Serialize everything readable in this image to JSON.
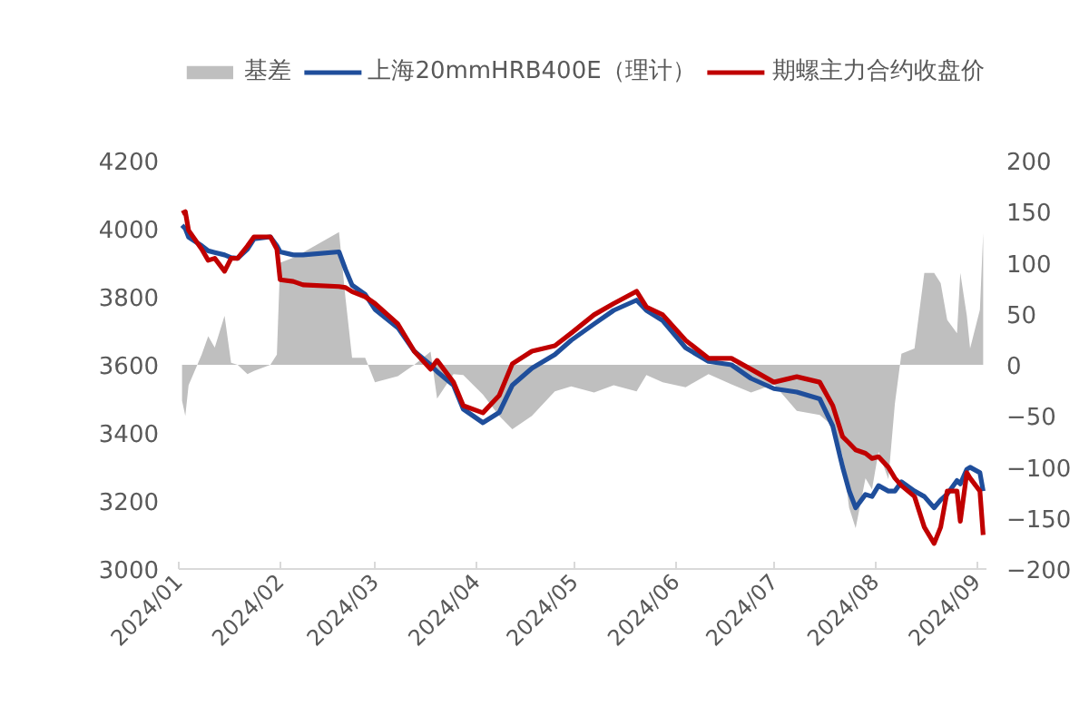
{
  "chart_data": {
    "type": "line",
    "x": [
      "2024-01-02",
      "2024-01-03",
      "2024-01-04",
      "2024-01-08",
      "2024-01-10",
      "2024-01-12",
      "2024-01-15",
      "2024-01-17",
      "2024-01-19",
      "2024-01-22",
      "2024-01-24",
      "2024-01-29",
      "2024-01-31",
      "2024-02-01",
      "2024-02-05",
      "2024-02-08",
      "2024-02-19",
      "2024-02-21",
      "2024-02-23",
      "2024-02-27",
      "2024-03-01",
      "2024-03-08",
      "2024-03-13",
      "2024-03-18",
      "2024-03-20",
      "2024-03-25",
      "2024-03-28",
      "2024-04-03",
      "2024-04-08",
      "2024-04-12",
      "2024-04-18",
      "2024-04-25",
      "2024-04-30",
      "2024-05-07",
      "2024-05-13",
      "2024-05-20",
      "2024-05-23",
      "2024-05-28",
      "2024-06-04",
      "2024-06-11",
      "2024-06-18",
      "2024-06-24",
      "2024-07-01",
      "2024-07-08",
      "2024-07-15",
      "2024-07-19",
      "2024-07-22",
      "2024-07-24",
      "2024-07-26",
      "2024-07-29",
      "2024-07-31",
      "2024-08-02",
      "2024-08-05",
      "2024-08-07",
      "2024-08-09",
      "2024-08-13",
      "2024-08-16",
      "2024-08-19",
      "2024-08-21",
      "2024-08-23",
      "2024-08-26",
      "2024-08-27",
      "2024-08-29",
      "2024-08-30",
      "2024-09-02",
      "2024-09-03"
    ],
    "series": [
      {
        "name": "基差",
        "type": "area",
        "axis": "y2",
        "color": "#bfbfbf",
        "values": [
          -35,
          -50,
          -20,
          10,
          28,
          17,
          48,
          2,
          0,
          -9,
          -6,
          0,
          10,
          100,
          105,
          110,
          130,
          65,
          7,
          7,
          -17,
          -11,
          0,
          13,
          -33,
          -9,
          -10,
          -29,
          -50,
          -63,
          -50,
          -26,
          -21,
          -27,
          -20,
          -26,
          -10,
          -17,
          -22,
          -9,
          -19,
          -27,
          -19,
          -45,
          -49,
          -60,
          -89,
          -140,
          -160,
          -111,
          -122,
          -85,
          -112,
          -38,
          11,
          16,
          90,
          90,
          80,
          44,
          31,
          90,
          48,
          16,
          54,
          129
        ]
      },
      {
        "name": "上海20mmHRB400E（理计）",
        "type": "line",
        "color": "#1f4e9b",
        "values": [
          4010,
          4000,
          3975,
          3950,
          3935,
          3930,
          3923,
          3915,
          3913,
          3940,
          3970,
          3976,
          3950,
          3932,
          3923,
          3923,
          3932,
          3880,
          3834,
          3807,
          3763,
          3709,
          3640,
          3600,
          3580,
          3540,
          3470,
          3430,
          3460,
          3540,
          3590,
          3630,
          3672,
          3720,
          3760,
          3790,
          3760,
          3730,
          3650,
          3610,
          3600,
          3560,
          3530,
          3520,
          3500,
          3420,
          3300,
          3230,
          3180,
          3219,
          3213,
          3245,
          3229,
          3229,
          3256,
          3229,
          3213,
          3180,
          3203,
          3220,
          3260,
          3250,
          3293,
          3299,
          3283,
          3229
        ]
      },
      {
        "name": "期螺主力合约收盘价",
        "type": "line",
        "color": "#c00000",
        "values": [
          4045,
          4050,
          3995,
          3940,
          3907,
          3913,
          3875,
          3913,
          3913,
          3949,
          3976,
          3976,
          3940,
          3850,
          3845,
          3835,
          3830,
          3827,
          3815,
          3800,
          3780,
          3720,
          3640,
          3587,
          3613,
          3549,
          3480,
          3459,
          3510,
          3603,
          3640,
          3656,
          3693,
          3747,
          3780,
          3816,
          3770,
          3747,
          3672,
          3619,
          3619,
          3587,
          3549,
          3565,
          3549,
          3480,
          3389,
          3370,
          3350,
          3340,
          3325,
          3330,
          3299,
          3267,
          3245,
          3213,
          3123,
          3075,
          3123,
          3229,
          3229,
          3140,
          3283,
          3267,
          3229,
          3100
        ]
      }
    ],
    "xlim": [
      "2024-01-01",
      "2024-09-04"
    ],
    "xticks": [
      {
        "value": "2024-01",
        "label": "2024/01"
      },
      {
        "value": "2024-02",
        "label": "2024/02"
      },
      {
        "value": "2024-03",
        "label": "2024/03"
      },
      {
        "value": "2024-04",
        "label": "2024/04"
      },
      {
        "value": "2024-05",
        "label": "2024/05"
      },
      {
        "value": "2024-06",
        "label": "2024/06"
      },
      {
        "value": "2024-07",
        "label": "2024/07"
      },
      {
        "value": "2024-08",
        "label": "2024/08"
      },
      {
        "value": "2024-09",
        "label": "2024/09"
      }
    ],
    "ylim": [
      3000,
      4200
    ],
    "yticks": [
      3000,
      3200,
      3400,
      3600,
      3800,
      4000,
      4200
    ],
    "y2lim": [
      -200,
      200
    ],
    "y2ticks": [
      -200,
      -150,
      -100,
      -50,
      0,
      50,
      100,
      150,
      200
    ],
    "legend": "top",
    "grid": false
  }
}
